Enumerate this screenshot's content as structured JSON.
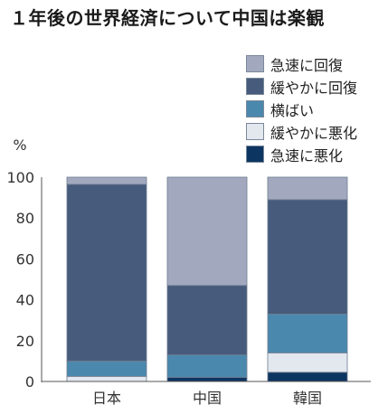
{
  "chart_data": {
    "type": "bar",
    "stacked": true,
    "title": "１年後の世界経済について中国は楽観",
    "ylabel": "%",
    "ylim": [
      0,
      100
    ],
    "yticks": [
      0,
      20,
      40,
      60,
      80,
      100
    ],
    "categories": [
      "日本",
      "中国",
      "韓国"
    ],
    "grid": false,
    "legend_position": "top-right",
    "series": [
      {
        "name": "急速に悪化",
        "color": "#0d3561",
        "values": [
          0,
          2,
          4.5
        ]
      },
      {
        "name": "緩やかに悪化",
        "color": "#e3e7ee",
        "values": [
          2.5,
          0,
          9.5
        ]
      },
      {
        "name": "横ばい",
        "color": "#4b88ad",
        "values": [
          7.5,
          11,
          19
        ]
      },
      {
        "name": "緩やかに回復",
        "color": "#475b7c",
        "values": [
          86.5,
          34,
          56
        ]
      },
      {
        "name": "急速に回復",
        "color": "#a2a9bf",
        "values": [
          3.5,
          53,
          11
        ]
      }
    ]
  }
}
